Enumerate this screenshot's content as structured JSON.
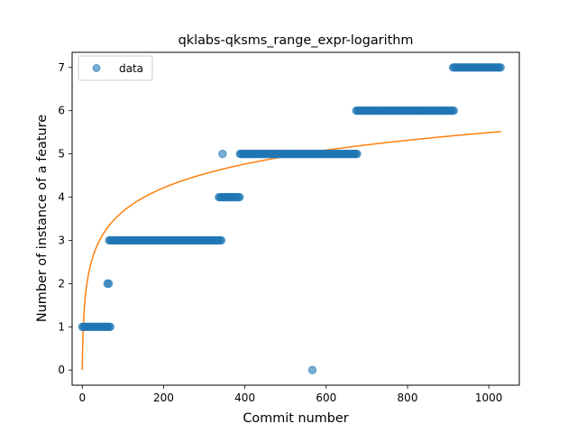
{
  "chart_data": {
    "type": "scatter",
    "title": "qklabs-qksms_range_expr-logarithm",
    "xlabel": "Commit number",
    "ylabel": "Number of instance of a feature",
    "xlim": [
      -25,
      1075
    ],
    "ylim": [
      -0.35,
      7.35
    ],
    "xticks": [
      0,
      200,
      400,
      600,
      800,
      1000
    ],
    "yticks": [
      0,
      1,
      2,
      3,
      4,
      5,
      6,
      7
    ],
    "xtick_labels": [
      "0",
      "200",
      "400",
      "600",
      "800",
      "1000"
    ],
    "ytick_labels": [
      "0",
      "1",
      "2",
      "3",
      "4",
      "5",
      "6",
      "7"
    ],
    "legend": {
      "position": "top-left",
      "entries": [
        "data"
      ]
    },
    "grid": false,
    "series": [
      {
        "name": "data",
        "kind": "scatter",
        "color": "#1f77b4",
        "segments": [
          {
            "y": 1,
            "x_start": 0,
            "x_end": 70
          },
          {
            "y": 2,
            "x_start": 62,
            "x_end": 66
          },
          {
            "y": 3,
            "x_start": 66,
            "x_end": 343
          },
          {
            "y": 5,
            "x_start": 345,
            "x_end": 345
          },
          {
            "y": 4,
            "x_start": 336,
            "x_end": 388
          },
          {
            "y": 5,
            "x_start": 388,
            "x_end": 678
          },
          {
            "y": 0,
            "x_start": 566,
            "x_end": 566
          },
          {
            "y": 6,
            "x_start": 674,
            "x_end": 914
          },
          {
            "y": 7,
            "x_start": 912,
            "x_end": 1030
          }
        ]
      },
      {
        "name": "",
        "kind": "line",
        "color": "#ff7f0e",
        "model": "y = a * ln(1 + x)",
        "a": 0.795,
        "x_start": 0,
        "x_end": 1030
      }
    ]
  }
}
